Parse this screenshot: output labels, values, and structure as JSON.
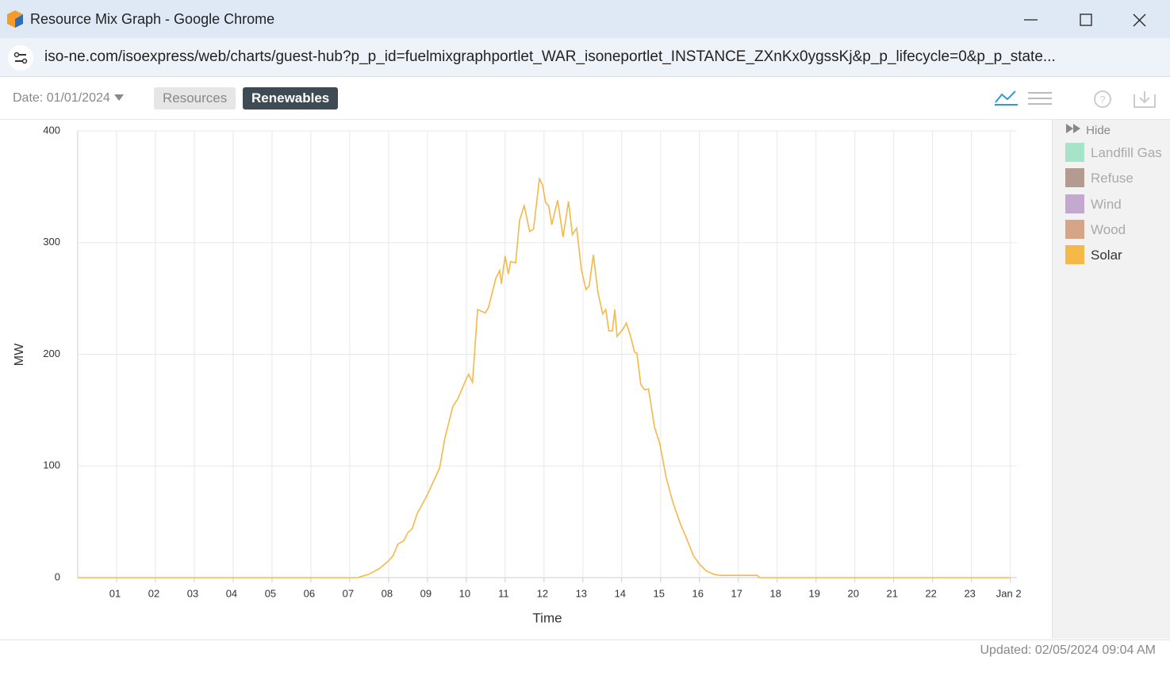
{
  "window": {
    "title": "Resource Mix Graph - Google Chrome"
  },
  "address_bar": {
    "url": "iso-ne.com/isoexpress/web/charts/guest-hub?p_p_id=fuelmixgraphportlet_WAR_isoneportlet_INSTANCE_ZXnKx0ygssKj&p_p_lifecycle=0&p_p_state..."
  },
  "toolbar": {
    "date": "Date: 01/01/2024",
    "tabs": [
      "Resources",
      "Renewables"
    ]
  },
  "chart_data": {
    "type": "line",
    "x_label": "Time",
    "y_label": "MW",
    "x": [
      0,
      7.2,
      7.49,
      7.76,
      8.0,
      8.12,
      8.24,
      8.39,
      8.49,
      8.61,
      8.73,
      8.98,
      9.31,
      9.45,
      9.65,
      9.78,
      10.0,
      10.06,
      10.16,
      10.29,
      10.49,
      10.57,
      10.76,
      10.86,
      10.9,
      11.0,
      11.08,
      11.14,
      11.27,
      11.37,
      11.49,
      11.63,
      11.73,
      11.88,
      11.96,
      12.04,
      12.12,
      12.2,
      12.35,
      12.49,
      12.63,
      12.73,
      12.84,
      12.96,
      13.08,
      13.16,
      13.27,
      13.39,
      13.51,
      13.59,
      13.67,
      13.76,
      13.82,
      13.88,
      14.02,
      14.12,
      14.22,
      14.33,
      14.39,
      14.49,
      14.59,
      14.69,
      14.84,
      14.98,
      15.14,
      15.31,
      15.51,
      15.67,
      15.84,
      16.0,
      16.18,
      16.37,
      16.53,
      17.49,
      17.55,
      24
    ],
    "series": [
      {
        "name": "Solar",
        "color": "#f5b849",
        "values": [
          0,
          0,
          3,
          8,
          15,
          20,
          30,
          33,
          40,
          44,
          57,
          73,
          98,
          125,
          153,
          160,
          178,
          182,
          175,
          240,
          237,
          242,
          268,
          275,
          263,
          288,
          272,
          283,
          282,
          320,
          333,
          310,
          312,
          357,
          352,
          336,
          333,
          316,
          338,
          305,
          337,
          307,
          313,
          276,
          258,
          261,
          289,
          255,
          236,
          240,
          221,
          221,
          240,
          216,
          222,
          228,
          217,
          202,
          201,
          173,
          168,
          169,
          135,
          120,
          90,
          68,
          48,
          35,
          20,
          12,
          6,
          3,
          2,
          2,
          0,
          0
        ]
      }
    ],
    "xlim": [
      0,
      24.17
    ],
    "ylim": [
      0,
      400
    ],
    "yticks": [
      0,
      100,
      200,
      300,
      400
    ],
    "xticks": [
      {
        "value": 1,
        "label": "01"
      },
      {
        "value": 2,
        "label": "02"
      },
      {
        "value": 3,
        "label": "03"
      },
      {
        "value": 4,
        "label": "04"
      },
      {
        "value": 5,
        "label": "05"
      },
      {
        "value": 6,
        "label": "06"
      },
      {
        "value": 7,
        "label": "07"
      },
      {
        "value": 8,
        "label": "08"
      },
      {
        "value": 9,
        "label": "09"
      },
      {
        "value": 10,
        "label": "10"
      },
      {
        "value": 11,
        "label": "11"
      },
      {
        "value": 12,
        "label": "12"
      },
      {
        "value": 13,
        "label": "13"
      },
      {
        "value": 14,
        "label": "14"
      },
      {
        "value": 15,
        "label": "15"
      },
      {
        "value": 16,
        "label": "16"
      },
      {
        "value": 17,
        "label": "17"
      },
      {
        "value": 18,
        "label": "18"
      },
      {
        "value": 19,
        "label": "19"
      },
      {
        "value": 20,
        "label": "20"
      },
      {
        "value": 21,
        "label": "21"
      },
      {
        "value": 22,
        "label": "22"
      },
      {
        "value": 23,
        "label": "23"
      },
      {
        "value": 24,
        "label": "Jan 2"
      }
    ],
    "grid": true
  },
  "legend": {
    "toggle": "Hide",
    "inactive_items": [
      {
        "name": "Landfill Gas",
        "color": "#a6e3c9"
      },
      {
        "name": "Refuse",
        "color": "#b49b90"
      },
      {
        "name": "Wind",
        "color": "#c3a8d0"
      },
      {
        "name": "Wood",
        "color": "#d6a487"
      }
    ]
  },
  "footer": {
    "updated": "Updated: 02/05/2024 09:04 AM"
  }
}
